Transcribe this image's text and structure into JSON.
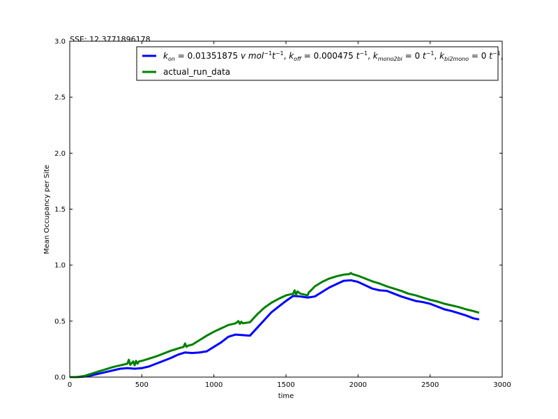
{
  "chart_data": {
    "type": "line",
    "annotation": "SSE: 12.3771896178",
    "xlabel": "time",
    "ylabel": "Mean Occupancy per Site",
    "xlim": [
      0,
      3000
    ],
    "ylim": [
      0,
      3.0
    ],
    "xticks": [
      0,
      500,
      1000,
      1500,
      2000,
      2500,
      3000
    ],
    "xtick_labels": [
      "0",
      "500",
      "1000",
      "1500",
      "2000",
      "2500",
      "3000"
    ],
    "yticks": [
      0,
      0.5,
      1.0,
      1.5,
      2.0,
      2.5,
      3.0
    ],
    "ytick_labels": [
      "0.0",
      "0.5",
      "1.0",
      "1.5",
      "2.0",
      "2.5",
      "3.0"
    ],
    "legend_position": "top-right",
    "grid": false,
    "series": [
      {
        "name": "k_on = 0.01351875 v mol^-1 t^-1, k_off = 0.000475 t^-1, k_mono2bi = 0 t^-1, k_bi2mono = 0 t^-1,",
        "legend_parts": {
          "kon_label": "k",
          "kon_sub": "on",
          "kon_value": "0.01351875",
          "kon_units": "v mol",
          "koff_label": "k",
          "koff_sub": "off",
          "koff_value": "0.000475",
          "m2b_label": "k",
          "m2b_sub": "mono2bi",
          "m2b_value": "0",
          "b2m_label": "k",
          "b2m_sub": "bi2mono",
          "b2m_value": "0",
          "unit_t": "t",
          "exp_neg1": "−1"
        },
        "color": "#0000ff",
        "x": [
          0,
          50,
          100,
          150,
          200,
          250,
          300,
          350,
          400,
          450,
          500,
          550,
          600,
          650,
          700,
          750,
          800,
          850,
          900,
          950,
          1000,
          1050,
          1100,
          1150,
          1200,
          1250,
          1300,
          1350,
          1400,
          1450,
          1500,
          1550,
          1600,
          1650,
          1700,
          1750,
          1800,
          1850,
          1900,
          1950,
          2000,
          2050,
          2100,
          2150,
          2200,
          2250,
          2300,
          2350,
          2400,
          2450,
          2500,
          2550,
          2600,
          2650,
          2700,
          2750,
          2800,
          2840
        ],
        "y": [
          0.0,
          0.0,
          0.005,
          0.015,
          0.03,
          0.045,
          0.06,
          0.075,
          0.08,
          0.075,
          0.08,
          0.095,
          0.12,
          0.145,
          0.17,
          0.2,
          0.22,
          0.215,
          0.22,
          0.23,
          0.27,
          0.31,
          0.36,
          0.38,
          0.375,
          0.37,
          0.44,
          0.51,
          0.58,
          0.63,
          0.68,
          0.725,
          0.72,
          0.71,
          0.72,
          0.76,
          0.8,
          0.83,
          0.86,
          0.865,
          0.85,
          0.82,
          0.79,
          0.775,
          0.77,
          0.745,
          0.72,
          0.7,
          0.68,
          0.67,
          0.655,
          0.63,
          0.605,
          0.59,
          0.57,
          0.55,
          0.525,
          0.515
        ]
      },
      {
        "name": "actual_run_data",
        "color": "#008000",
        "x": [
          0,
          50,
          100,
          150,
          200,
          250,
          300,
          350,
          400,
          410,
          420,
          430,
          440,
          450,
          460,
          470,
          480,
          500,
          550,
          600,
          650,
          700,
          750,
          790,
          800,
          810,
          820,
          850,
          900,
          950,
          1000,
          1050,
          1100,
          1150,
          1170,
          1180,
          1190,
          1200,
          1250,
          1300,
          1350,
          1400,
          1450,
          1500,
          1550,
          1560,
          1570,
          1580,
          1600,
          1650,
          1660,
          1670,
          1700,
          1750,
          1800,
          1850,
          1900,
          1940,
          1950,
          1960,
          2000,
          2050,
          2100,
          2150,
          2200,
          2250,
          2300,
          2350,
          2400,
          2450,
          2500,
          2550,
          2600,
          2650,
          2700,
          2750,
          2800,
          2840
        ],
        "y": [
          0.0,
          0.0,
          0.01,
          0.03,
          0.05,
          0.07,
          0.09,
          0.105,
          0.12,
          0.155,
          0.11,
          0.125,
          0.14,
          0.105,
          0.145,
          0.12,
          0.14,
          0.145,
          0.165,
          0.185,
          0.21,
          0.235,
          0.255,
          0.27,
          0.3,
          0.27,
          0.28,
          0.29,
          0.33,
          0.37,
          0.405,
          0.435,
          0.465,
          0.48,
          0.5,
          0.475,
          0.495,
          0.48,
          0.49,
          0.56,
          0.62,
          0.665,
          0.7,
          0.73,
          0.745,
          0.775,
          0.735,
          0.765,
          0.745,
          0.73,
          0.76,
          0.77,
          0.81,
          0.85,
          0.88,
          0.9,
          0.915,
          0.92,
          0.93,
          0.92,
          0.905,
          0.88,
          0.855,
          0.835,
          0.81,
          0.79,
          0.77,
          0.745,
          0.73,
          0.71,
          0.69,
          0.675,
          0.655,
          0.64,
          0.625,
          0.605,
          0.59,
          0.575
        ]
      }
    ]
  }
}
